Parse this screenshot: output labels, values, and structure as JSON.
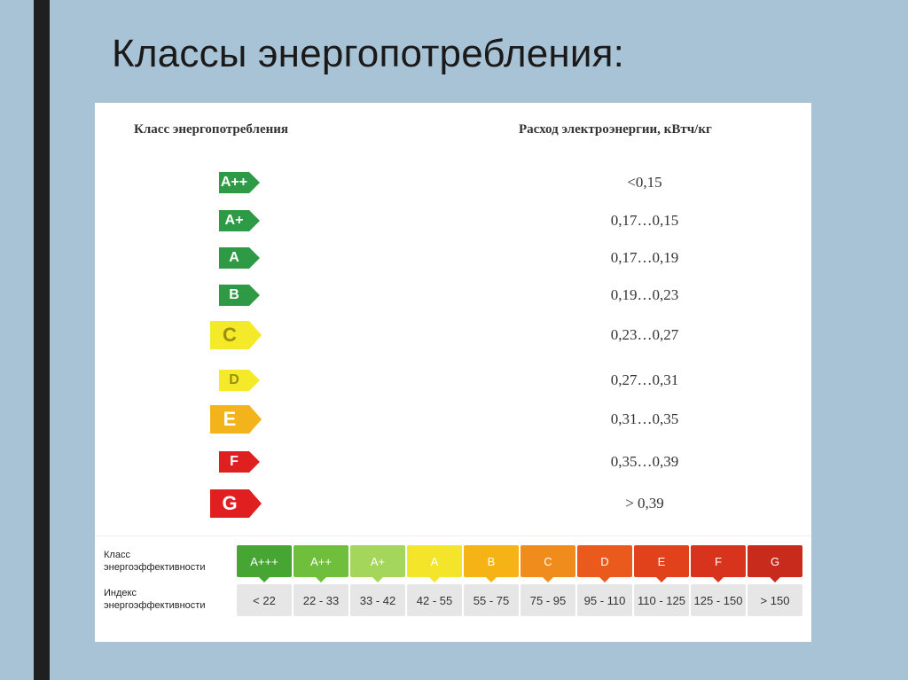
{
  "slide": {
    "title": "Классы энергопотребления:"
  },
  "table": {
    "left_header": "Класс энергопотребления",
    "right_header": "Расход электроэнергии, кВтч/кг",
    "rows": [
      {
        "class": "A++",
        "value": "<0,15",
        "color": "#2e9a46",
        "text_color": "#ffffff"
      },
      {
        "class": "A+",
        "value": "0,17…0,15",
        "color": "#2e9a46",
        "text_color": "#ffffff"
      },
      {
        "class": "A",
        "value": "0,17…0,19",
        "color": "#2e9a46",
        "text_color": "#ffffff"
      },
      {
        "class": "B",
        "value": "0,19…0,23",
        "color": "#2e9a46",
        "text_color": "#ffffff"
      },
      {
        "class": "C",
        "value": "0,23…0,27",
        "color": "#f4ea2a",
        "text_color": "#9a8f10"
      },
      {
        "class": "D",
        "value": "0,27…0,31",
        "color": "#f4ea2a",
        "text_color": "#9a8f10"
      },
      {
        "class": "E",
        "value": "0,31…0,35",
        "color": "#f2b31b",
        "text_color": "#ffffff"
      },
      {
        "class": "F",
        "value": "0,35…0,39",
        "color": "#e02020",
        "text_color": "#ffffff"
      },
      {
        "class": "G",
        "value": "> 0,39",
        "color": "#e02020",
        "text_color": "#ffffff"
      }
    ]
  },
  "efficiency": {
    "class_label_line1": "Класс",
    "class_label_line2": "энергоэффективности",
    "index_label_line1": "Индекс",
    "index_label_line2": "энергоэффективности",
    "classes": [
      {
        "label": "A+++",
        "index": "< 22",
        "color": "#47a633"
      },
      {
        "label": "A++",
        "index": "22 - 33",
        "color": "#6fbf3c"
      },
      {
        "label": "A+",
        "index": "33 - 42",
        "color": "#a3d65a"
      },
      {
        "label": "A",
        "index": "42 - 55",
        "color": "#f4e52a"
      },
      {
        "label": "B",
        "index": "55 - 75",
        "color": "#f5b316"
      },
      {
        "label": "C",
        "index": "75 - 95",
        "color": "#f08c1c"
      },
      {
        "label": "D",
        "index": "95 - 110",
        "color": "#ea5a1c"
      },
      {
        "label": "E",
        "index": "110 - 125",
        "color": "#e2421b"
      },
      {
        "label": "F",
        "index": "125 - 150",
        "color": "#d8331c"
      },
      {
        "label": "G",
        "index": "> 150",
        "color": "#c82b1c"
      }
    ]
  }
}
